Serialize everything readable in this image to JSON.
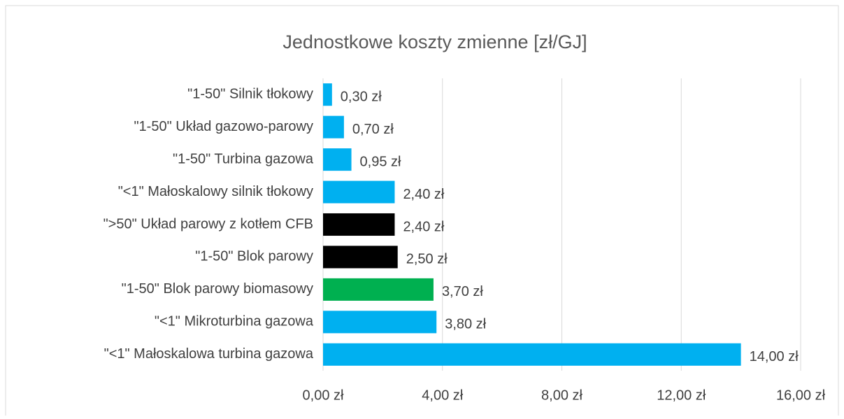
{
  "chart_data": {
    "type": "bar",
    "orientation": "horizontal",
    "title": "Jednostkowe koszty zmienne [zł/GJ]",
    "categories": [
      "\"1-50\" Silnik tłokowy",
      "\"1-50\" Układ gazowo-parowy",
      "\"1-50\" Turbina gazowa",
      "\"<1\" Małoskalowy silnik tłokowy",
      "\">50\" Układ parowy z kotłem CFB",
      "\"1-50\" Blok parowy",
      "\"1-50\" Blok parowy biomasowy",
      "\"<1\" Mikroturbina gazowa",
      "\"<1\" Małoskalowa turbina gazowa"
    ],
    "values": [
      0.3,
      0.7,
      0.95,
      2.4,
      2.4,
      2.5,
      3.7,
      3.8,
      14
    ],
    "value_labels": [
      "0,30 zł",
      "0,70 zł",
      "0,95 zł",
      "2,40 zł",
      "2,40 zł",
      "2,50 zł",
      "3,70 zł",
      "3,80 zł",
      "14,00 zł"
    ],
    "colors": [
      "#00b0f0",
      "#00b0f0",
      "#00b0f0",
      "#00b0f0",
      "#000000",
      "#000000",
      "#00b050",
      "#00b0f0",
      "#00b0f0"
    ],
    "xlim": [
      0,
      16
    ],
    "xticks": [
      {
        "value": 0,
        "label": "0,00 zł"
      },
      {
        "value": 4,
        "label": "4,00 zł"
      },
      {
        "value": 8,
        "label": "8,00 zł"
      },
      {
        "value": 12,
        "label": "12,00 zł"
      },
      {
        "value": 16,
        "label": "16,00 zł"
      }
    ],
    "grid": true
  }
}
